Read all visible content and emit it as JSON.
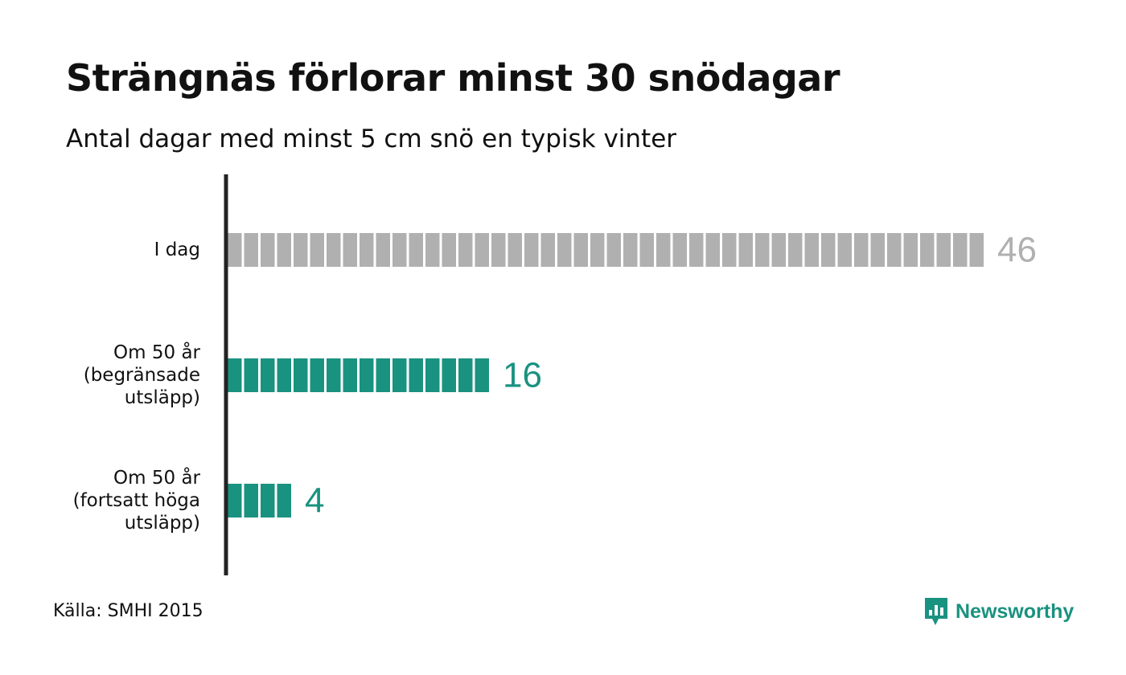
{
  "title": "Strängnäs förlorar minst 30 snödagar",
  "subtitle": "Antal dagar med minst 5 cm snö en typisk vinter",
  "source": "Källa: SMHI 2015",
  "brand": {
    "name": "Newsworthy",
    "icon": "newsworthy-logo-icon",
    "color": "#1a9280"
  },
  "chart_data": {
    "type": "bar",
    "orientation": "horizontal",
    "style": "unit-blocks",
    "title": "Strängnäs förlorar minst 30 snödagar",
    "subtitle": "Antal dagar med minst 5 cm snö en typisk vinter",
    "categories": [
      [
        "I dag"
      ],
      [
        "Om 50 år",
        "(begränsade",
        "utsläpp)"
      ],
      [
        "Om 50 år",
        "(fortsatt höga",
        "utsläpp)"
      ]
    ],
    "values": [
      46,
      16,
      4
    ],
    "colors": [
      "#b0b0b0",
      "#1a9280",
      "#1a9280"
    ],
    "grid": false,
    "legend": "none"
  }
}
